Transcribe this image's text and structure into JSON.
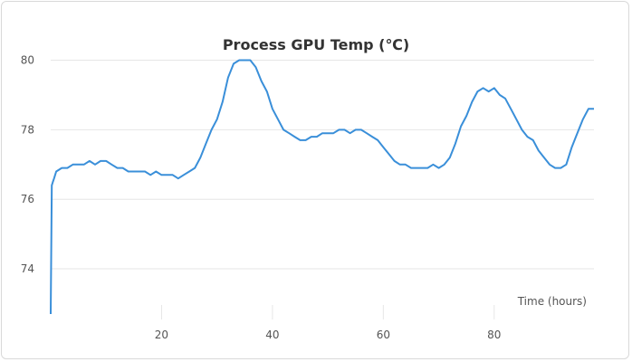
{
  "chart_data": {
    "type": "line",
    "title": "Process GPU Temp (℃)",
    "xlabel": "Time (hours)",
    "ylabel": "",
    "xlim": [
      0,
      98
    ],
    "ylim": [
      72.7,
      80.3
    ],
    "x_ticks": [
      20,
      40,
      60,
      80
    ],
    "y_ticks": [
      74,
      76,
      78,
      80
    ],
    "grid": true,
    "legend": "none",
    "colors": {
      "line": "#3a8fd9"
    },
    "series": [
      {
        "x": [
          0,
          0.2,
          0.4,
          0.6,
          0.8,
          1,
          2,
          3,
          4,
          5,
          6,
          7,
          8,
          9,
          10,
          11,
          12,
          13,
          14,
          15,
          16,
          17,
          18,
          19,
          20,
          21,
          22,
          23,
          24,
          25,
          26,
          27,
          28,
          29,
          30,
          31,
          32,
          33,
          34,
          35,
          36,
          37,
          38,
          39,
          40,
          41,
          42,
          43,
          44,
          45,
          46,
          47,
          48,
          49,
          50,
          51,
          52,
          53,
          54,
          55,
          56,
          57,
          58,
          59,
          60,
          61,
          62,
          63,
          64,
          65,
          66,
          67,
          68,
          69,
          70,
          71,
          72,
          73,
          74,
          75,
          76,
          77,
          78,
          79,
          80,
          81,
          82,
          83,
          84,
          85,
          86,
          87,
          88,
          89,
          90,
          91,
          92,
          93,
          94,
          95,
          96,
          97,
          98
        ],
        "values": [
          72.7,
          76.4,
          76.5,
          76.6,
          76.7,
          76.8,
          76.9,
          76.9,
          77.0,
          77.0,
          77.0,
          77.1,
          77.0,
          77.1,
          77.1,
          77.0,
          76.9,
          76.9,
          76.8,
          76.8,
          76.8,
          76.8,
          76.7,
          76.8,
          76.7,
          76.7,
          76.7,
          76.6,
          76.7,
          76.8,
          76.9,
          77.2,
          77.6,
          78.0,
          78.3,
          78.8,
          79.5,
          79.9,
          80.0,
          80.0,
          80.0,
          79.8,
          79.4,
          79.1,
          78.6,
          78.3,
          78.0,
          77.9,
          77.8,
          77.7,
          77.7,
          77.8,
          77.8,
          77.9,
          77.9,
          77.9,
          78.0,
          78.0,
          77.9,
          78.0,
          78.0,
          77.9,
          77.8,
          77.7,
          77.5,
          77.3,
          77.1,
          77.0,
          77.0,
          76.9,
          76.9,
          76.9,
          76.9,
          77.0,
          76.9,
          77.0,
          77.2,
          77.6,
          78.1,
          78.4,
          78.8,
          79.1,
          79.2,
          79.1,
          79.2,
          79.0,
          78.9,
          78.6,
          78.3,
          78.0,
          77.8,
          77.7,
          77.4,
          77.2,
          77.0,
          76.9,
          76.9,
          77.0,
          77.5,
          77.9,
          78.3,
          78.6,
          78.6
        ]
      }
    ]
  }
}
